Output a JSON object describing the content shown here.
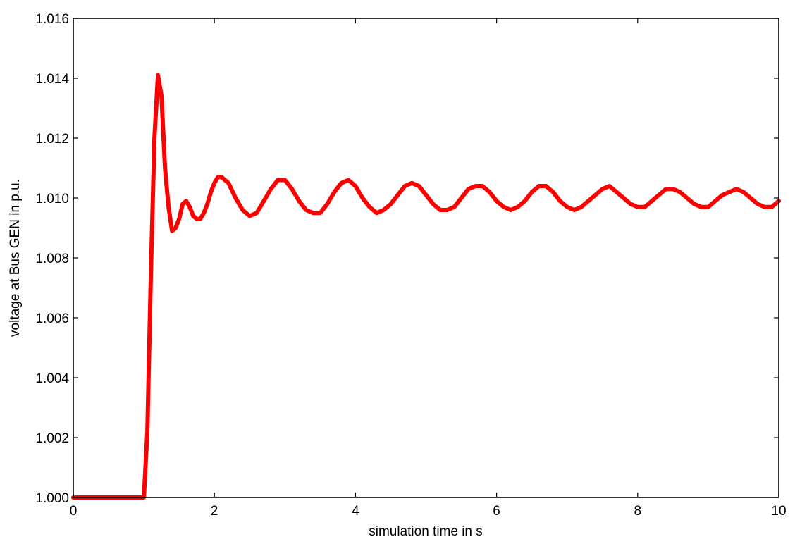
{
  "chart_data": {
    "type": "line",
    "title": "",
    "xlabel": "simulation time in s",
    "ylabel": "voltage at Bus GEN in p.u.",
    "xlim": [
      0,
      10
    ],
    "ylim": [
      1.0,
      1.016
    ],
    "x_ticks": [
      0,
      2,
      4,
      6,
      8,
      10
    ],
    "x_tick_labels": [
      "0",
      "2",
      "4",
      "6",
      "8",
      "10"
    ],
    "y_ticks": [
      1.0,
      1.002,
      1.004,
      1.006,
      1.008,
      1.01,
      1.012,
      1.014,
      1.016
    ],
    "y_tick_labels": [
      "1.000",
      "1.002",
      "1.004",
      "1.006",
      "1.008",
      "1.010",
      "1.012",
      "1.014",
      "1.016"
    ],
    "grid": false,
    "legend": "none",
    "line_color": "#ff0000",
    "series": [
      {
        "x": [
          0,
          0.5,
          1.0,
          1.05,
          1.1,
          1.15,
          1.2,
          1.25,
          1.3,
          1.35,
          1.4,
          1.45,
          1.5,
          1.55,
          1.6,
          1.65,
          1.7,
          1.75,
          1.8,
          1.85,
          1.9,
          1.95,
          2.0,
          2.05,
          2.1,
          2.2,
          2.3,
          2.4,
          2.5,
          2.6,
          2.7,
          2.8,
          2.9,
          3.0,
          3.1,
          3.2,
          3.3,
          3.4,
          3.5,
          3.6,
          3.7,
          3.8,
          3.9,
          4.0,
          4.1,
          4.2,
          4.3,
          4.4,
          4.5,
          4.6,
          4.7,
          4.8,
          4.9,
          5.0,
          5.1,
          5.2,
          5.3,
          5.4,
          5.5,
          5.6,
          5.7,
          5.8,
          5.9,
          6.0,
          6.1,
          6.2,
          6.3,
          6.4,
          6.5,
          6.6,
          6.7,
          6.8,
          6.9,
          7.0,
          7.1,
          7.2,
          7.3,
          7.4,
          7.5,
          7.6,
          7.7,
          7.8,
          7.9,
          8.0,
          8.1,
          8.2,
          8.3,
          8.4,
          8.5,
          8.6,
          8.7,
          8.8,
          8.9,
          9.0,
          9.1,
          9.2,
          9.3,
          9.4,
          9.5,
          9.6,
          9.7,
          9.8,
          9.9,
          10.0
        ],
        "y": [
          1.0,
          1.0,
          1.0,
          1.0022,
          1.0075,
          1.012,
          1.0141,
          1.0134,
          1.011,
          1.0097,
          1.0089,
          1.009,
          1.0093,
          1.0098,
          1.0099,
          1.0097,
          1.0094,
          1.0093,
          1.0093,
          1.0095,
          1.0098,
          1.0102,
          1.0105,
          1.0107,
          1.0107,
          1.0105,
          1.01,
          1.0096,
          1.0094,
          1.0095,
          1.0099,
          1.0103,
          1.0106,
          1.0106,
          1.0103,
          1.0099,
          1.0096,
          1.0095,
          1.0095,
          1.0098,
          1.0102,
          1.0105,
          1.0106,
          1.0104,
          1.01,
          1.0097,
          1.0095,
          1.0096,
          1.0098,
          1.0101,
          1.0104,
          1.0105,
          1.0104,
          1.0101,
          1.0098,
          1.0096,
          1.0096,
          1.0097,
          1.01,
          1.0103,
          1.0104,
          1.0104,
          1.0102,
          1.0099,
          1.0097,
          1.0096,
          1.0097,
          1.0099,
          1.0102,
          1.0104,
          1.0104,
          1.0102,
          1.0099,
          1.0097,
          1.0096,
          1.0097,
          1.0099,
          1.0101,
          1.0103,
          1.0104,
          1.0102,
          1.01,
          1.0098,
          1.0097,
          1.0097,
          1.0099,
          1.0101,
          1.0103,
          1.0103,
          1.0102,
          1.01,
          1.0098,
          1.0097,
          1.0097,
          1.0099,
          1.0101,
          1.0102,
          1.0103,
          1.0102,
          1.01,
          1.0098,
          1.0097,
          1.0097,
          1.0099
        ]
      }
    ]
  }
}
